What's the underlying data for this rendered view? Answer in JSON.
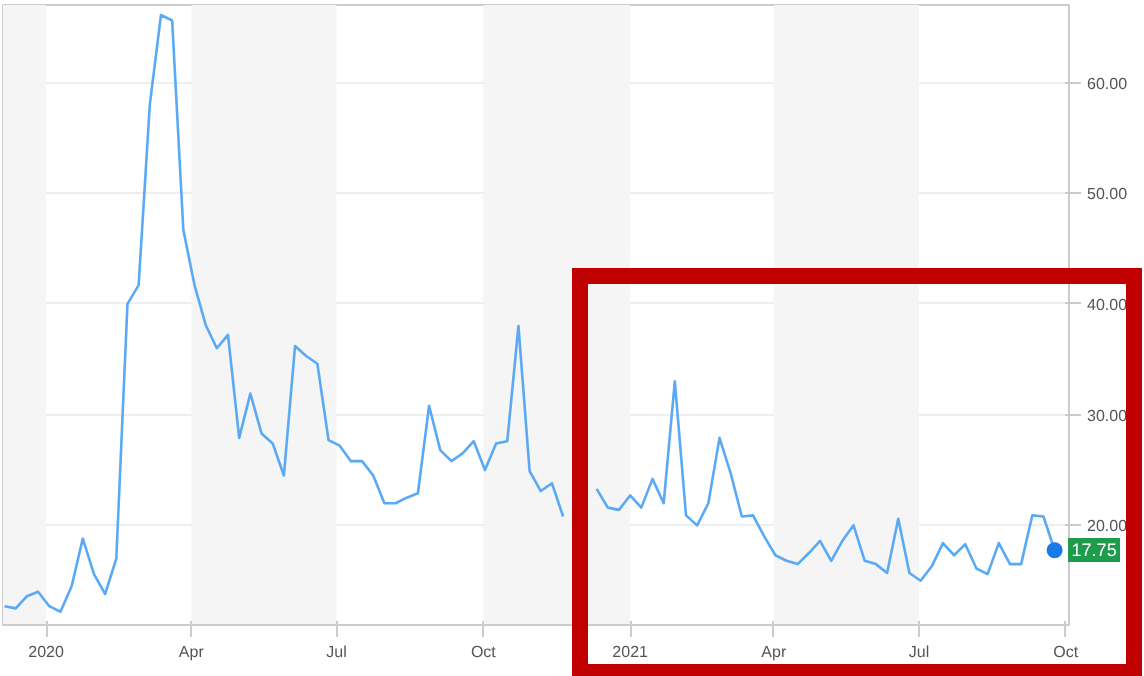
{
  "chart_data": {
    "type": "line",
    "x": [
      "2019-12-06",
      "2019-12-13",
      "2019-12-20",
      "2019-12-27",
      "2020-01-03",
      "2020-01-10",
      "2020-01-17",
      "2020-01-24",
      "2020-01-31",
      "2020-02-07",
      "2020-02-14",
      "2020-02-21",
      "2020-02-28",
      "2020-03-06",
      "2020-03-13",
      "2020-03-20",
      "2020-03-27",
      "2020-04-03",
      "2020-04-10",
      "2020-04-17",
      "2020-04-24",
      "2020-05-01",
      "2020-05-08",
      "2020-05-15",
      "2020-05-22",
      "2020-05-29",
      "2020-06-05",
      "2020-06-12",
      "2020-06-19",
      "2020-06-26",
      "2020-07-03",
      "2020-07-10",
      "2020-07-17",
      "2020-07-24",
      "2020-07-31",
      "2020-08-07",
      "2020-08-14",
      "2020-08-21",
      "2020-08-28",
      "2020-09-04",
      "2020-09-11",
      "2020-09-18",
      "2020-09-25",
      "2020-10-02",
      "2020-10-09",
      "2020-10-16",
      "2020-10-23",
      "2020-10-30",
      "2020-11-06",
      "2020-11-13",
      "2020-11-20",
      "2020-11-27",
      "2020-12-04",
      "2020-12-11",
      "2020-12-18",
      "2020-12-25",
      "2021-01-01",
      "2021-01-08",
      "2021-01-15",
      "2021-01-22",
      "2021-01-29",
      "2021-02-05",
      "2021-02-12",
      "2021-02-19",
      "2021-02-26",
      "2021-03-05",
      "2021-03-12",
      "2021-03-19",
      "2021-03-26",
      "2021-04-02",
      "2021-04-09",
      "2021-04-16",
      "2021-04-23",
      "2021-04-30",
      "2021-05-07",
      "2021-05-14",
      "2021-05-21",
      "2021-05-28",
      "2021-06-04",
      "2021-06-11",
      "2021-06-18",
      "2021-06-25",
      "2021-07-02",
      "2021-07-09",
      "2021-07-16",
      "2021-07-23",
      "2021-07-30",
      "2021-08-06",
      "2021-08-13",
      "2021-08-20",
      "2021-08-27",
      "2021-09-03",
      "2021-09-10",
      "2021-09-17",
      "2021-09-24"
    ],
    "series": [
      {
        "color": "#5aa9f5",
        "values": [
          12.7,
          12.5,
          13.6,
          14.0,
          12.7,
          12.2,
          14.5,
          18.8,
          15.6,
          13.8,
          17.0,
          40.0,
          41.7,
          58.0,
          66.1,
          65.6,
          46.7,
          41.7,
          38.1,
          36.0,
          37.2,
          27.9,
          31.9,
          28.3,
          27.4,
          24.5,
          36.2,
          35.3,
          34.6,
          27.7,
          27.2,
          25.8,
          25.8,
          24.5,
          22.0,
          22.0,
          22.5,
          22.9,
          30.8,
          26.8,
          25.8,
          26.5,
          27.6,
          25.0,
          27.4,
          27.6,
          38.0,
          24.9,
          23.1,
          23.8,
          20.8,
          null,
          null,
          23.3,
          21.6,
          21.4,
          22.7,
          21.6,
          24.2,
          22.0,
          33.0,
          20.9,
          20.0,
          22.0,
          27.9,
          24.7,
          20.8,
          20.9,
          19.0,
          17.3,
          16.8,
          16.5,
          17.5,
          18.6,
          16.8,
          18.6,
          20.0,
          16.8,
          16.5,
          15.7,
          20.6,
          15.7,
          15.0,
          16.3,
          18.4,
          17.3,
          18.3,
          16.1,
          15.6,
          18.4,
          16.5,
          16.5,
          20.9,
          20.8,
          17.75
        ]
      },
      {
        "type": "scatter",
        "color": "#1a7ae8",
        "x": [
          "2021-09-24"
        ],
        "values": [
          17.75
        ],
        "value_labels": [
          "17.75"
        ]
      }
    ],
    "xlim": [
      "2019-12-05",
      "2021-10-03"
    ],
    "xticks": [
      {
        "value": "2020-01-01",
        "label": "2020"
      },
      {
        "value": "2020-04-01",
        "label": "Apr"
      },
      {
        "value": "2020-07-01",
        "label": "Jul"
      },
      {
        "value": "2020-10-01",
        "label": "Oct"
      },
      {
        "value": "2021-01-01",
        "label": "2021"
      },
      {
        "value": "2021-04-01",
        "label": "Apr"
      },
      {
        "value": "2021-07-01",
        "label": "Jul"
      },
      {
        "value": "2021-10-01",
        "label": "Oct"
      }
    ],
    "ylim": [
      11,
      67
    ],
    "yticks": [
      {
        "value": 20,
        "label": "20.00"
      },
      {
        "value": 30,
        "label": "30.00"
      },
      {
        "value": 40,
        "label": "40.00"
      },
      {
        "value": 50,
        "label": "50.00"
      },
      {
        "value": 60,
        "label": "60.00"
      }
    ],
    "grid": "y",
    "bands": [
      {
        "axis": "x",
        "from": "2019-12-05",
        "to": "2020-01-01",
        "color": "#f5f5f5"
      },
      {
        "axis": "x",
        "from": "2020-04-01",
        "to": "2020-07-01",
        "color": "#f5f5f5"
      },
      {
        "axis": "x",
        "from": "2020-10-01",
        "to": "2021-01-01",
        "color": "#f5f5f5"
      },
      {
        "axis": "x",
        "from": "2021-04-01",
        "to": "2021-07-01",
        "color": "#f5f5f5"
      }
    ]
  }
}
